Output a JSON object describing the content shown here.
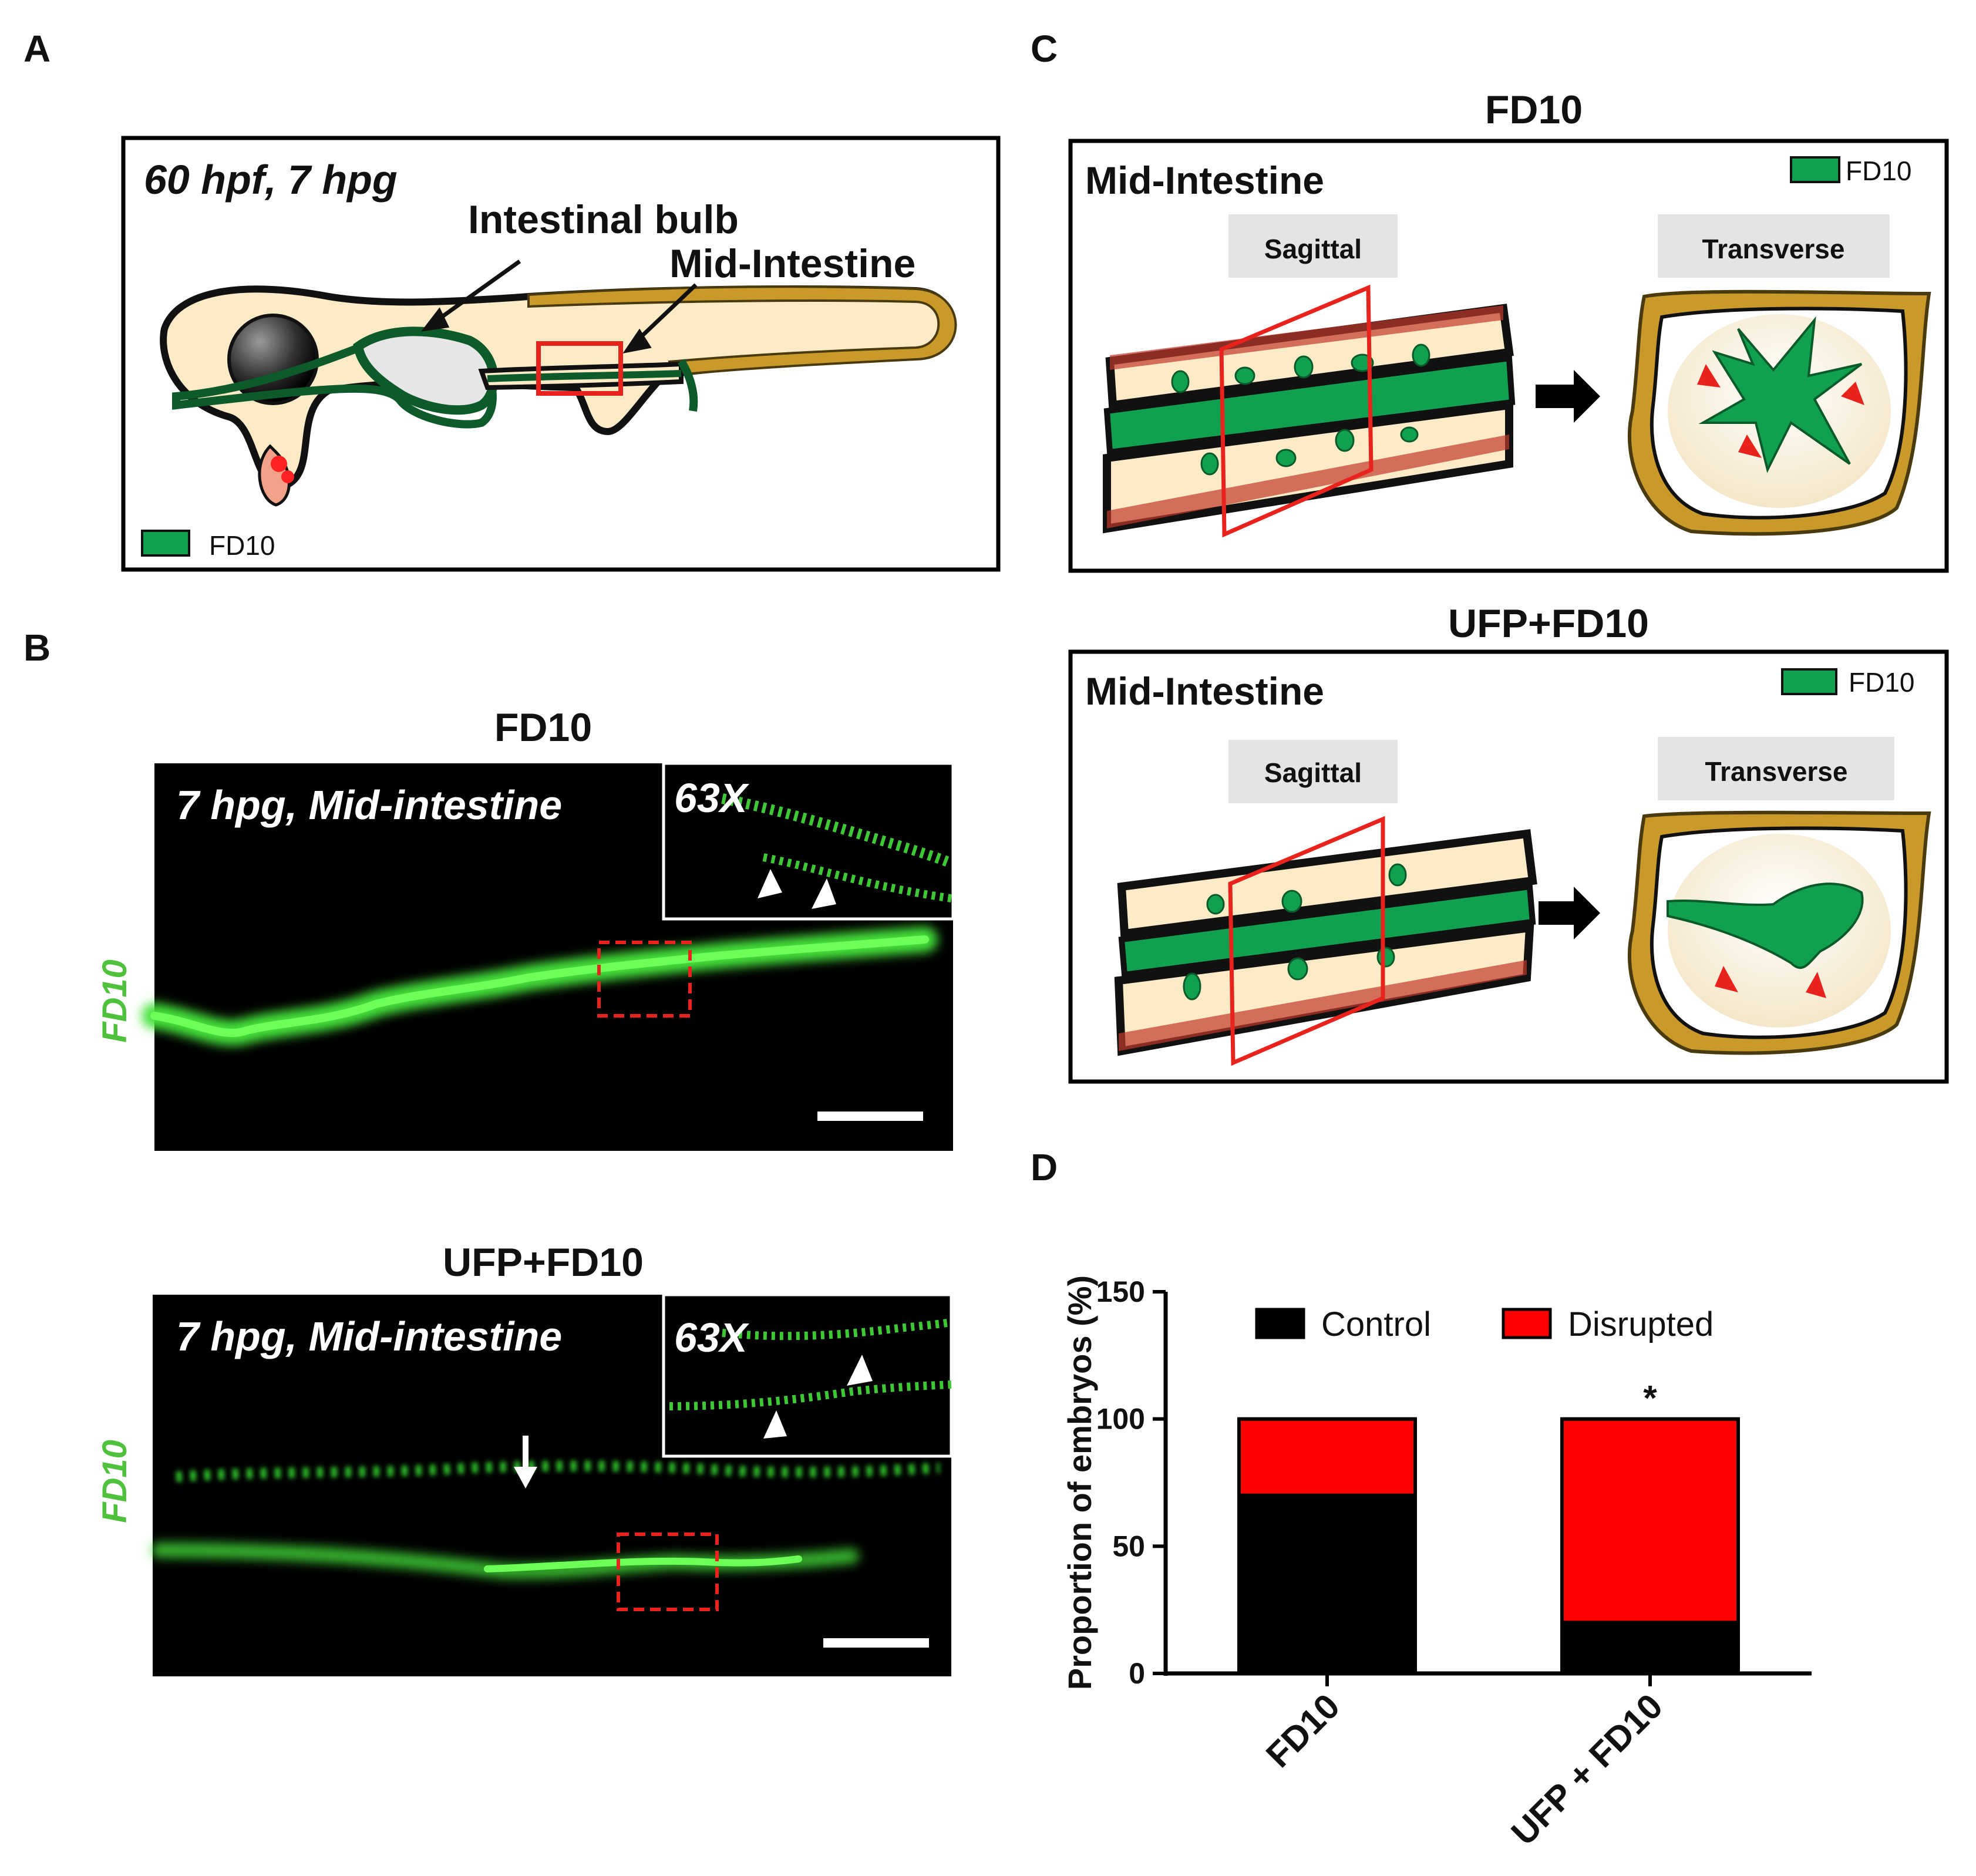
{
  "panel_a": {
    "letter": "A",
    "stage_text": "60 hpf, 7 hpg",
    "intestinal_bulb_label": "Intestinal bulb",
    "mid_intestine_label": "Mid-Intestine",
    "legend_label": "FD10"
  },
  "panel_b": {
    "letter": "B",
    "top": {
      "title": "FD10",
      "overlay_text": "7 hpg, Mid-intestine",
      "inset_text": "63X",
      "side_label": "FD10"
    },
    "bottom": {
      "title": "UFP+FD10",
      "overlay_text": "7 hpg, Mid-intestine",
      "inset_text": "63X",
      "side_label": "FD10"
    }
  },
  "panel_c": {
    "letter": "C",
    "top": {
      "title": "FD10",
      "box_label": "Mid-Intestine",
      "legend_label": "FD10",
      "sagittal": "Sagittal",
      "transverse": "Transverse"
    },
    "bottom": {
      "title": "UFP+FD10",
      "box_label": "Mid-Intestine",
      "legend_label": "FD10",
      "sagittal": "Sagittal",
      "transverse": "Transverse"
    }
  },
  "panel_d": {
    "letter": "D"
  },
  "colors": {
    "fd10_green": "#10a050",
    "microscopy_green": "#44e23a",
    "roi_red": "#e8231d",
    "yolk": "#fcebc6",
    "pigment": "#c99a2a",
    "control": "#000000",
    "disrupted": "#ff0000"
  },
  "chart_data": {
    "type": "bar",
    "stacked": true,
    "categories": [
      "FD10",
      "UFP + FD10"
    ],
    "series": [
      {
        "name": "Control",
        "values": [
          70,
          20
        ],
        "color": "#000000"
      },
      {
        "name": "Disrupted",
        "values": [
          30,
          80
        ],
        "color": "#ff0000"
      }
    ],
    "ylabel": "Proportion of embryos (%)",
    "ylim": [
      0,
      150
    ],
    "yticks": [
      0,
      50,
      100,
      150
    ],
    "legend_position": "top",
    "annotations": [
      {
        "category": "UFP + FD10",
        "text": "*"
      }
    ]
  }
}
